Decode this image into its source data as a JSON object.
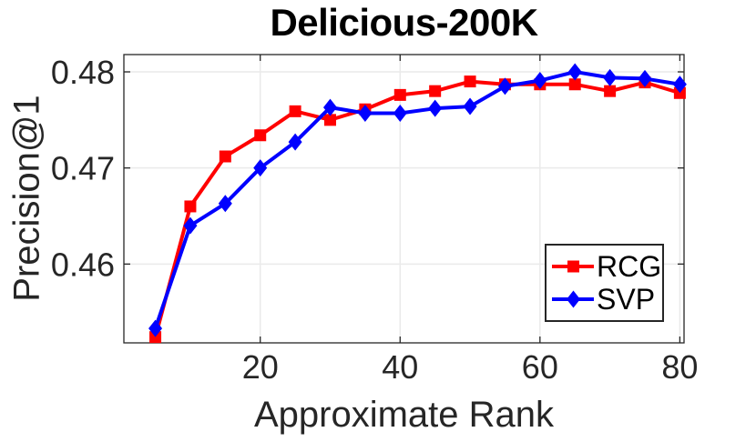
{
  "chart_data": {
    "type": "line",
    "title": "Delicious-200K",
    "xlabel": "Approximate Rank",
    "ylabel": "Precision@1",
    "x": [
      5,
      10,
      15,
      20,
      25,
      30,
      35,
      40,
      45,
      50,
      55,
      60,
      65,
      70,
      75,
      80
    ],
    "series": [
      {
        "name": "RCG",
        "color": "#ff0000",
        "marker": "square",
        "values": [
          0.4524,
          0.466,
          0.4712,
          0.4734,
          0.4759,
          0.475,
          0.4761,
          0.4776,
          0.478,
          0.479,
          0.4787,
          0.4787,
          0.4787,
          0.478,
          0.4789,
          0.4778
        ]
      },
      {
        "name": "SVP",
        "color": "#0000ff",
        "marker": "diamond",
        "values": [
          0.4533,
          0.464,
          0.4663,
          0.47,
          0.4727,
          0.4763,
          0.4757,
          0.4757,
          0.4762,
          0.4764,
          0.4785,
          0.4791,
          0.48,
          0.4794,
          0.4793,
          0.4787
        ]
      }
    ],
    "xlim": [
      0.5,
      80.6
    ],
    "ylim": [
      0.4518,
      0.4818
    ],
    "xticks": [
      20,
      40,
      60,
      80
    ],
    "xtick_labels": [
      "20",
      "40",
      "60",
      "80"
    ],
    "yticks": [
      0.46,
      0.47,
      0.48
    ],
    "ytick_labels": [
      "0.46",
      "0.47",
      "0.48"
    ],
    "grid": true,
    "legend_position": "bottom-right",
    "axis_color": "#262626",
    "grid_color": "#eaeaea",
    "background": "#ffffff"
  }
}
